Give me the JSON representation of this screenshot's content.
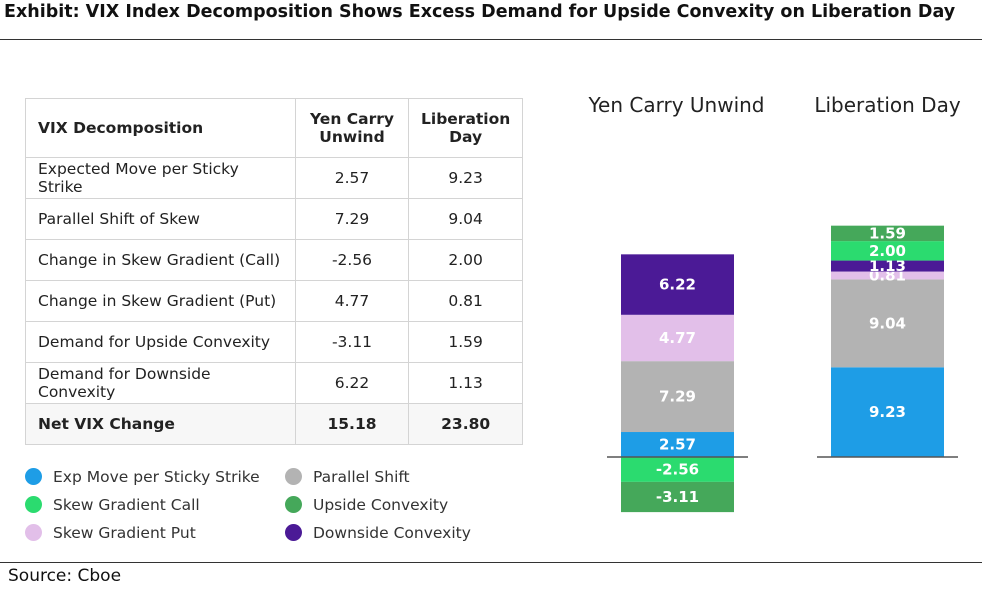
{
  "title": "Exhibit: VIX Index Decomposition Shows Excess Demand for Upside Convexity on Liberation Day",
  "source": "Source: Cboe",
  "table": {
    "headers": [
      "VIX Decomposition",
      "Yen Carry Unwind",
      "Liberation Day"
    ],
    "rows": [
      [
        "Expected Move per Sticky Strike",
        "2.57",
        "9.23"
      ],
      [
        "Parallel Shift of Skew",
        "7.29",
        "9.04"
      ],
      [
        "Change in Skew Gradient (Call)",
        "-2.56",
        "2.00"
      ],
      [
        "Change in Skew Gradient (Put)",
        "4.77",
        "0.81"
      ],
      [
        "Demand for Upside Convexity",
        "-3.11",
        "1.59"
      ],
      [
        "Demand for Downside Convexity",
        "6.22",
        "1.13"
      ]
    ],
    "total": [
      "Net VIX Change",
      "15.18",
      "23.80"
    ]
  },
  "legend": [
    {
      "label": "Exp Move per Sticky Strike",
      "color": "#1e9de6"
    },
    {
      "label": "Parallel Shift",
      "color": "#b3b3b3"
    },
    {
      "label": "Skew Gradient Call",
      "color": "#2bdb6f"
    },
    {
      "label": "Upside Convexity",
      "color": "#45a85a"
    },
    {
      "label": "Skew Gradient Put",
      "color": "#e2bfe9"
    },
    {
      "label": "Downside Convexity",
      "color": "#4b1a96"
    }
  ],
  "chart_data": {
    "type": "bar",
    "stacked": true,
    "categories": [
      "Yen Carry Unwind",
      "Liberation Day"
    ],
    "series": [
      {
        "name": "Exp Move per Sticky Strike",
        "values": [
          2.57,
          9.23
        ],
        "color": "#1e9de6"
      },
      {
        "name": "Parallel Shift",
        "values": [
          7.29,
          9.04
        ],
        "color": "#b3b3b3"
      },
      {
        "name": "Skew Gradient Put",
        "values": [
          4.77,
          0.81
        ],
        "color": "#e2bfe9"
      },
      {
        "name": "Downside Convexity",
        "values": [
          6.22,
          1.13
        ],
        "color": "#4b1a96"
      },
      {
        "name": "Skew Gradient Call",
        "values": [
          -2.56,
          2.0
        ],
        "color": "#2bdb6f"
      },
      {
        "name": "Upside Convexity",
        "values": [
          -3.11,
          1.59
        ],
        "color": "#45a85a"
      }
    ],
    "label_format": "two decimals"
  }
}
